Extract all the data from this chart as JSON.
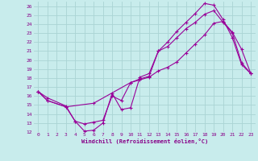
{
  "xlabel": "Windchill (Refroidissement éolien,°C)",
  "background_color": "#c8ecec",
  "grid_color": "#aad4d4",
  "line_color": "#990099",
  "xlim": [
    -0.5,
    23.5
  ],
  "ylim": [
    12,
    26.5
  ],
  "xticks": [
    0,
    1,
    2,
    3,
    4,
    5,
    6,
    7,
    8,
    9,
    10,
    11,
    12,
    13,
    14,
    15,
    16,
    17,
    18,
    19,
    20,
    21,
    22,
    23
  ],
  "yticks": [
    12,
    13,
    14,
    15,
    16,
    17,
    18,
    19,
    20,
    21,
    22,
    23,
    24,
    25,
    26
  ],
  "curve1_x": [
    0,
    1,
    3,
    4,
    5,
    6,
    7,
    8,
    9,
    10,
    11,
    12,
    13,
    14,
    15,
    16,
    17,
    18,
    19,
    20,
    21,
    22,
    23
  ],
  "curve1_y": [
    16.5,
    15.8,
    14.9,
    13.2,
    12.1,
    12.2,
    13.0,
    16.3,
    14.5,
    14.7,
    18.1,
    18.5,
    21.0,
    22.0,
    23.2,
    24.2,
    25.2,
    26.3,
    26.1,
    24.5,
    22.5,
    19.5,
    18.5
  ],
  "curve2_x": [
    0,
    1,
    3,
    4,
    5,
    6,
    7,
    8,
    9,
    10,
    11,
    12,
    13,
    14,
    15,
    16,
    17,
    18,
    19,
    20,
    21,
    22,
    23
  ],
  "curve2_y": [
    16.5,
    15.5,
    14.8,
    13.2,
    12.9,
    13.1,
    13.3,
    16.0,
    15.5,
    17.5,
    17.9,
    18.2,
    21.0,
    21.5,
    22.5,
    23.5,
    24.2,
    25.1,
    25.5,
    24.2,
    23.0,
    19.7,
    18.5
  ],
  "curve3_x": [
    0,
    1,
    3,
    6,
    10,
    11,
    12,
    13,
    14,
    15,
    16,
    17,
    18,
    19,
    20,
    21,
    22,
    23
  ],
  "curve3_y": [
    16.5,
    15.5,
    14.8,
    15.2,
    17.5,
    17.8,
    18.1,
    18.8,
    19.2,
    19.8,
    20.8,
    21.8,
    22.8,
    24.1,
    24.3,
    23.1,
    21.2,
    18.5
  ]
}
